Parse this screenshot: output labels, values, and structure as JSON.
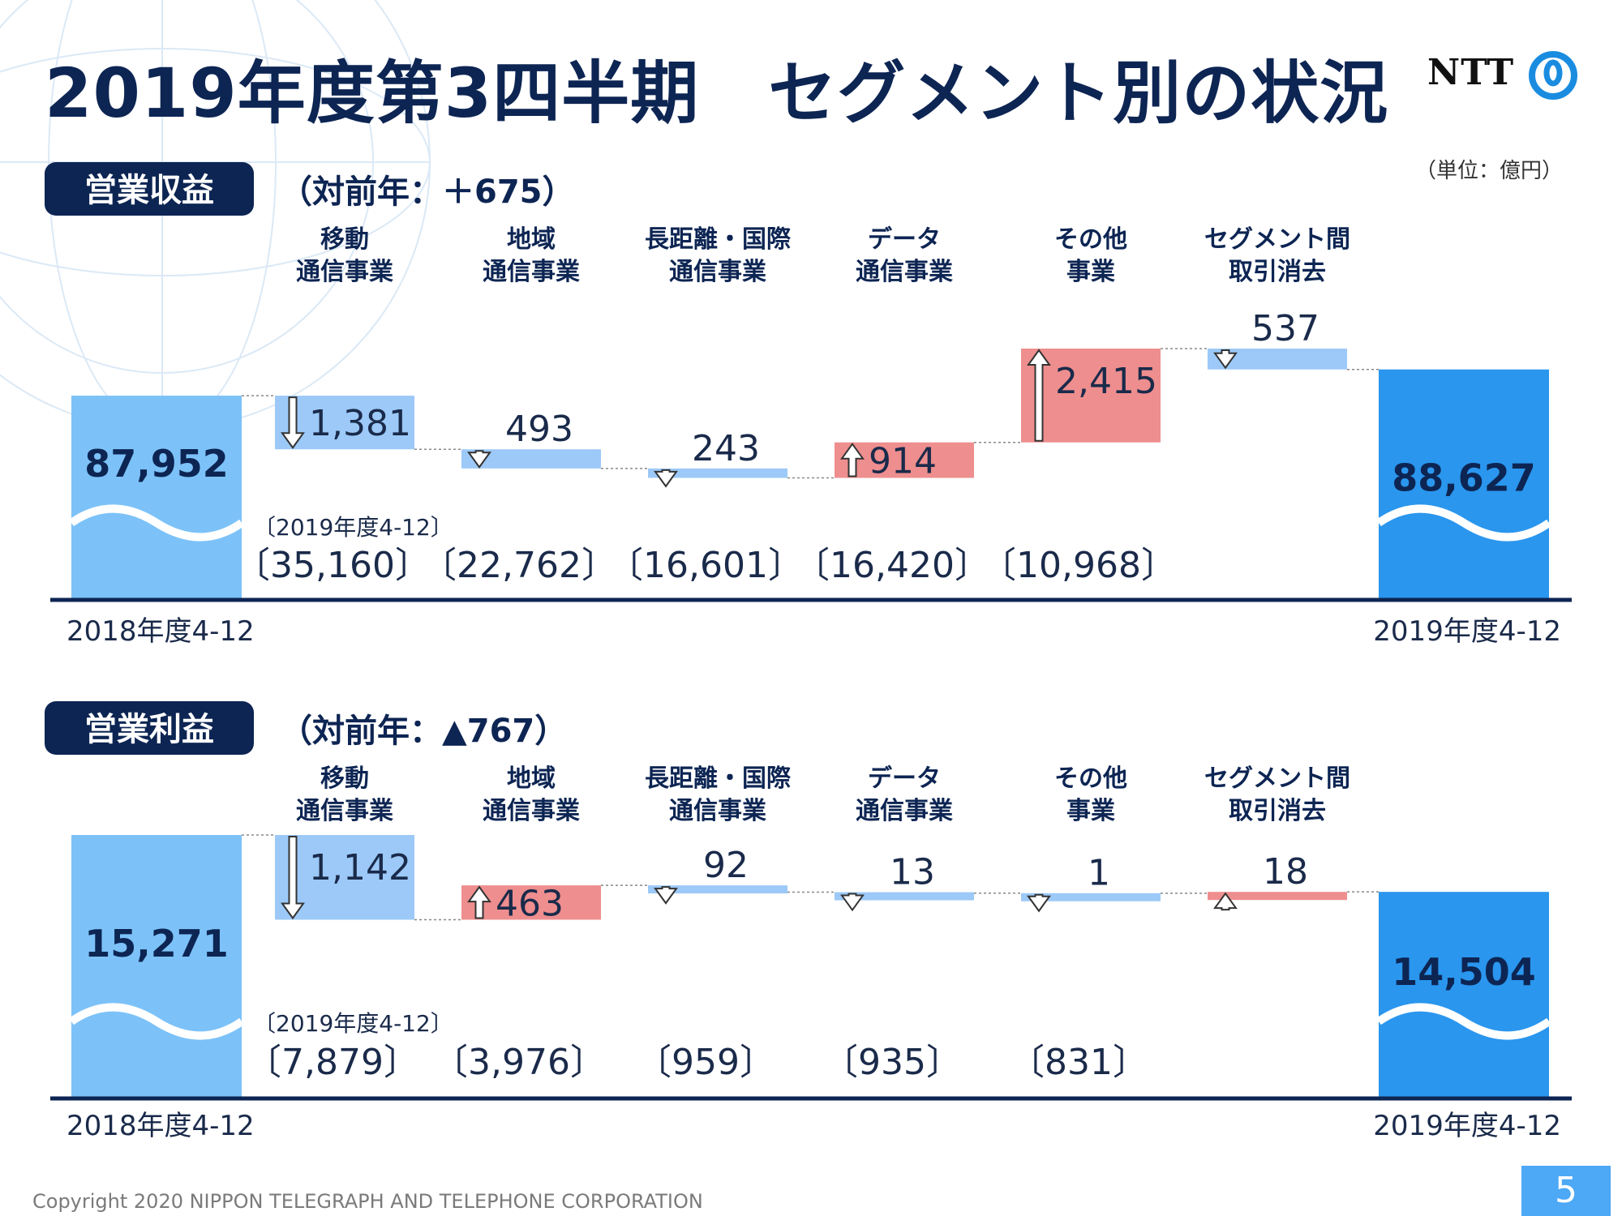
{
  "title": "2019年度第3四半期　セグメント別の状況",
  "logo_text": "NTT",
  "unit": "（単位：億円）",
  "copyright": "Copyright 2020 NIPPON TELEGRAPH AND TELEPHONE CORPORATION",
  "page_number": "5",
  "colors": {
    "navy": "#0d2553",
    "start_bar": "#7cc2f8",
    "end_bar": "#2a96ee",
    "decrease": "#9cc9f7",
    "increase": "#ee8e8e",
    "axis": "#0d2553"
  },
  "chart_data": [
    {
      "type": "bar",
      "section_label": "営業収益",
      "change_label": "（対前年：＋675）",
      "start": {
        "label": "2018年度4-12",
        "value": 87952,
        "value_text": "87,952"
      },
      "end": {
        "label": "2019年度4-12",
        "value": 88627,
        "value_text": "88,627"
      },
      "segments": [
        {
          "name_line1": "移動",
          "name_line2": "通信事業",
          "change": -1381,
          "change_text": "1,381",
          "total_text": "〔35,160〕"
        },
        {
          "name_line1": "地域",
          "name_line2": "通信事業",
          "change": -493,
          "change_text": "493",
          "total_text": "〔22,762〕"
        },
        {
          "name_line1": "長距離・国際",
          "name_line2": "通信事業",
          "change": -243,
          "change_text": "243",
          "total_text": "〔16,601〕"
        },
        {
          "name_line1": "データ",
          "name_line2": "通信事業",
          "change": 914,
          "change_text": "914",
          "total_text": "〔16,420〕"
        },
        {
          "name_line1": "その他",
          "name_line2": "事業",
          "change": 2415,
          "change_text": "2,415",
          "total_text": "〔10,968〕"
        },
        {
          "name_line1": "セグメント間",
          "name_line2": "取引消去",
          "change": -537,
          "change_text": "537",
          "total_text": ""
        }
      ],
      "period_note": "〔2019年度4-12〕"
    },
    {
      "type": "bar",
      "section_label": "営業利益",
      "change_label": "（対前年：▲767）",
      "start": {
        "label": "2018年度4-12",
        "value": 15271,
        "value_text": "15,271"
      },
      "end": {
        "label": "2019年度4-12",
        "value": 14504,
        "value_text": "14,504"
      },
      "segments": [
        {
          "name_line1": "移動",
          "name_line2": "通信事業",
          "change": -1142,
          "change_text": "1,142",
          "total_text": "〔7,879〕"
        },
        {
          "name_line1": "地域",
          "name_line2": "通信事業",
          "change": 463,
          "change_text": "463",
          "total_text": "〔3,976〕"
        },
        {
          "name_line1": "長距離・国際",
          "name_line2": "通信事業",
          "change": -92,
          "change_text": "92",
          "total_text": "〔959〕"
        },
        {
          "name_line1": "データ",
          "name_line2": "通信事業",
          "change": -13,
          "change_text": "13",
          "total_text": "〔935〕"
        },
        {
          "name_line1": "その他",
          "name_line2": "事業",
          "change": -1,
          "change_text": "1",
          "total_text": "〔831〕"
        },
        {
          "name_line1": "セグメント間",
          "name_line2": "取引消去",
          "change": 18,
          "change_text": "18",
          "total_text": ""
        }
      ],
      "period_note": "〔2019年度4-12〕"
    }
  ]
}
